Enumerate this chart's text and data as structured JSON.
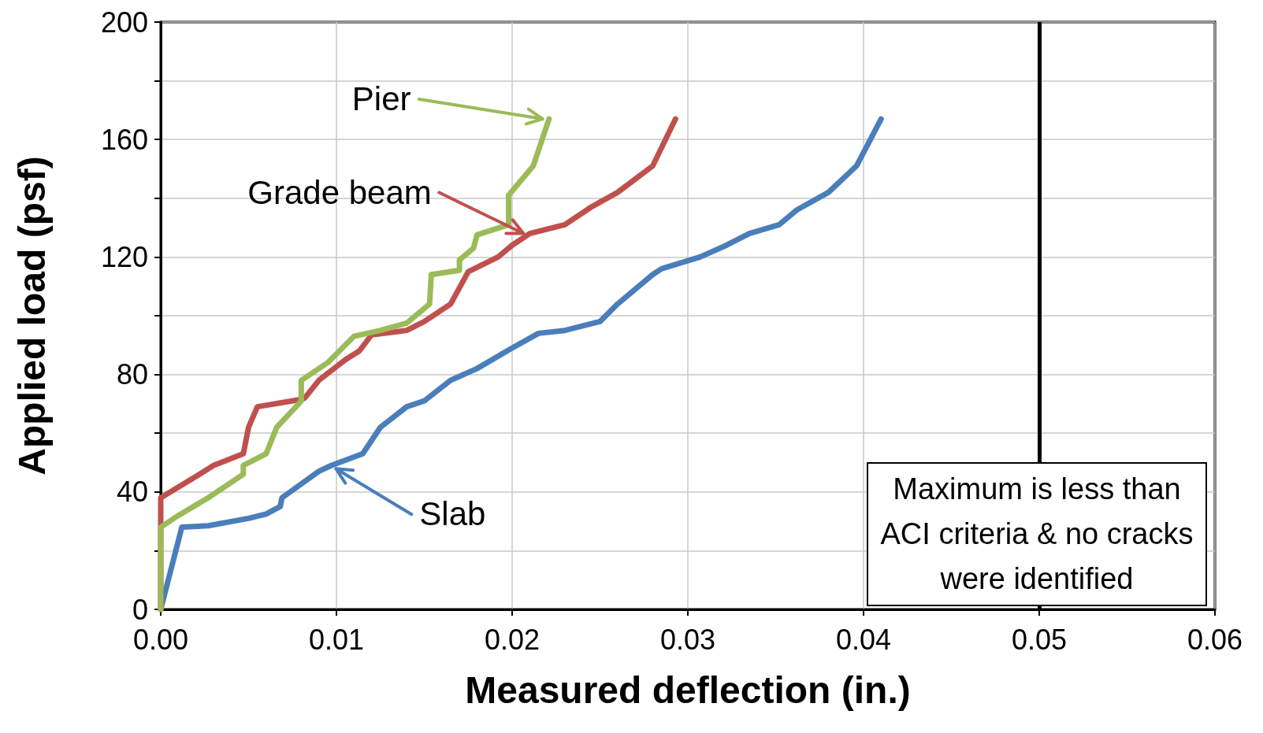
{
  "chart_data": {
    "type": "line",
    "xlabel": "Measured deflection (in.)",
    "ylabel": "Applied load (psf)",
    "xlim": [
      0,
      0.06
    ],
    "ylim": [
      0,
      200
    ],
    "xticks": [
      {
        "value": 0,
        "label": "0.00"
      },
      {
        "value": 0.01,
        "label": "0.01"
      },
      {
        "value": 0.02,
        "label": "0.02"
      },
      {
        "value": 0.03,
        "label": "0.03"
      },
      {
        "value": 0.04,
        "label": "0.04"
      },
      {
        "value": 0.05,
        "label": "0.05"
      },
      {
        "value": 0.06,
        "label": "0.06"
      }
    ],
    "yticks": [
      0,
      {
        "value": 20,
        "label": null
      },
      40,
      {
        "value": 60,
        "label": null
      },
      80,
      {
        "value": 100,
        "label": null
      },
      120,
      {
        "value": 140,
        "label": null
      },
      160,
      {
        "value": 180,
        "label": null
      },
      200
    ],
    "grid": true,
    "legend": "top left",
    "marker": "none",
    "line_style": "solid",
    "series": [
      {
        "name": "Slab",
        "color": "#4a7ebb",
        "x": [
          0,
          0.0012,
          0.0027,
          0.005,
          0.006,
          0.0068,
          0.0069,
          0.009,
          0.0097,
          0.0115,
          0.0125,
          0.014,
          0.015,
          0.0165,
          0.018,
          0.02,
          0.0215,
          0.023,
          0.025,
          0.026,
          0.028,
          0.0285,
          0.0307,
          0.0322,
          0.0335,
          0.0352,
          0.0362,
          0.038,
          0.0396,
          0.041
        ],
        "values": [
          0,
          28,
          28.5,
          31,
          32.5,
          35,
          38,
          47,
          49,
          53,
          62,
          69,
          71,
          78,
          82,
          89,
          94,
          95,
          98,
          104,
          114,
          116,
          120,
          124,
          128,
          131,
          136,
          142,
          151,
          167
        ]
      },
      {
        "name": "Grade beam",
        "color": "#c0504d",
        "x": [
          0,
          0,
          0.0022,
          0.003,
          0.0047,
          0.005,
          0.0055,
          0.008,
          0.0082,
          0.009,
          0.0105,
          0.0113,
          0.012,
          0.014,
          0.015,
          0.0165,
          0.0175,
          0.0192,
          0.02,
          0.021,
          0.023,
          0.0245,
          0.026,
          0.028,
          0.0293
        ],
        "values": [
          0,
          38,
          46,
          49,
          53,
          62,
          69,
          71.5,
          72,
          78,
          85,
          88,
          93.5,
          95,
          98,
          104,
          115,
          120,
          124,
          128,
          131,
          137,
          142,
          151,
          167
        ]
      },
      {
        "name": "Pier",
        "color": "#9bbb59",
        "x": [
          0,
          0,
          0.001,
          0.0027,
          0.0047,
          0.0047,
          0.006,
          0.0066,
          0.0077,
          0.008,
          0.008,
          0.0095,
          0.011,
          0.0125,
          0.014,
          0.0153,
          0.0154,
          0.017,
          0.017,
          0.0178,
          0.018,
          0.0198,
          0.0198,
          0.0212,
          0.0221
        ],
        "values": [
          0,
          28,
          32,
          38,
          46,
          49,
          53,
          62,
          69,
          71,
          78,
          84,
          93,
          95,
          97.5,
          104,
          114,
          115.5,
          119,
          123,
          127.5,
          131,
          141,
          151,
          167
        ]
      }
    ],
    "ref_lines": [
      {
        "axis": "x",
        "value": 0.05,
        "color": "#000000"
      }
    ],
    "annotations": [
      "Maximum is less than ACI criteria & no cracks were identified"
    ]
  }
}
